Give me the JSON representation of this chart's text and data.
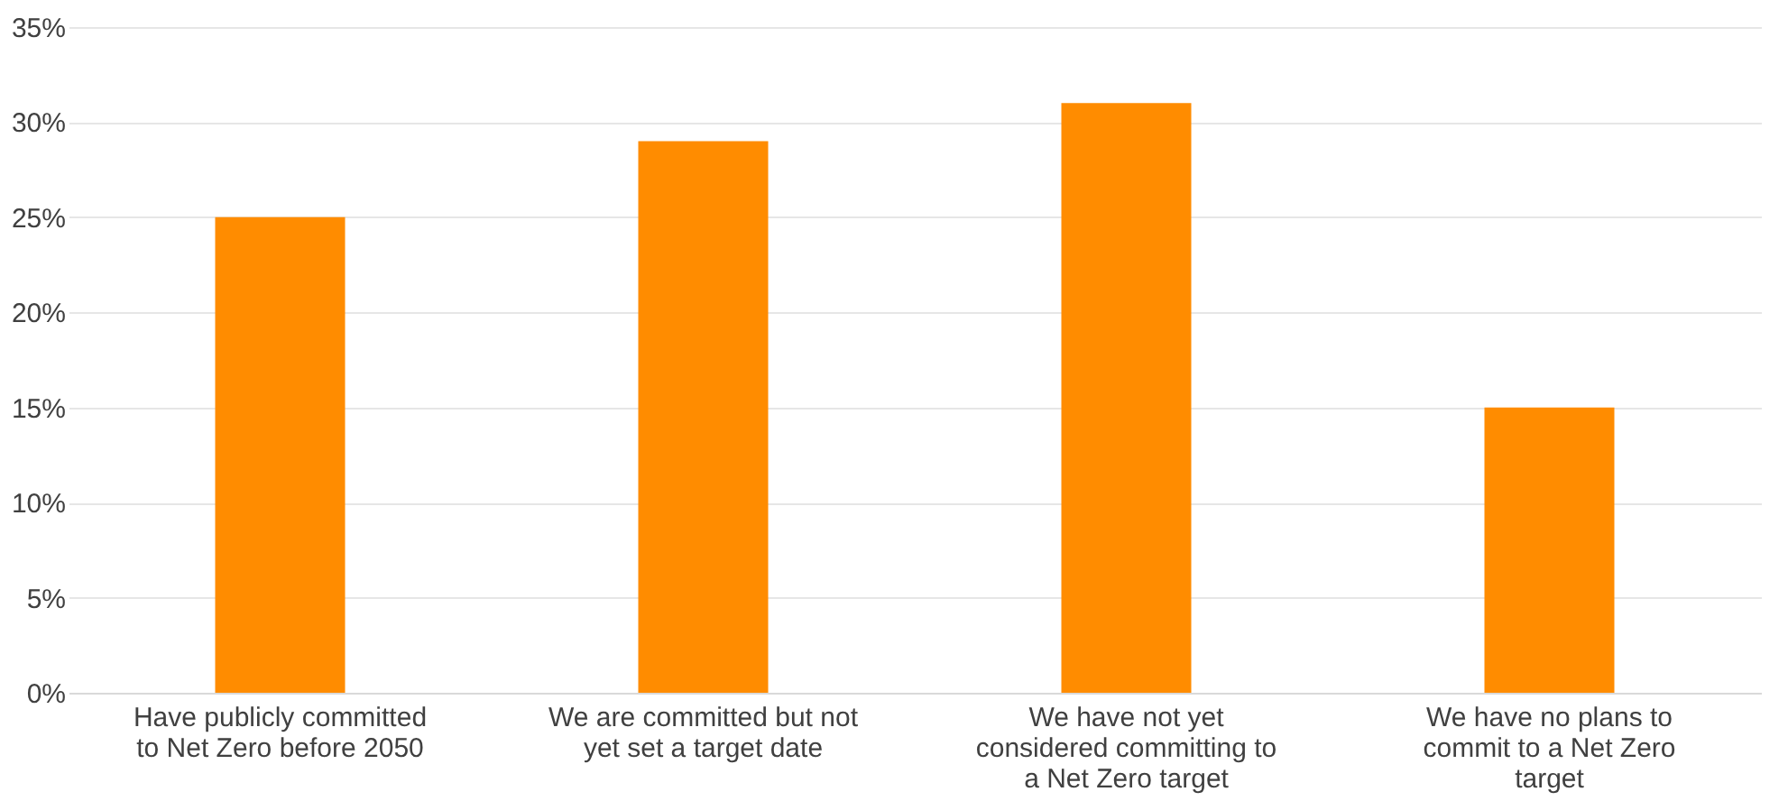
{
  "chart_data": {
    "type": "bar",
    "categories": [
      "Have publicly committed to Net Zero before 2050",
      "We are committed but not yet set a target date",
      "We have not yet considered committing to a Net Zero target",
      "We have no plans to commit to a Net Zero target"
    ],
    "values": [
      25,
      29,
      31,
      15
    ],
    "color": "#ff8c00",
    "ylim": [
      0,
      35
    ],
    "yticks": [
      {
        "value": 0,
        "label": "0%"
      },
      {
        "value": 5,
        "label": "5%"
      },
      {
        "value": 10,
        "label": "10%"
      },
      {
        "value": 15,
        "label": "15%"
      },
      {
        "value": 20,
        "label": "20%"
      },
      {
        "value": 25,
        "label": "25%"
      },
      {
        "value": 30,
        "label": "30%"
      },
      {
        "value": 35,
        "label": "35%"
      }
    ],
    "grid": "y"
  }
}
